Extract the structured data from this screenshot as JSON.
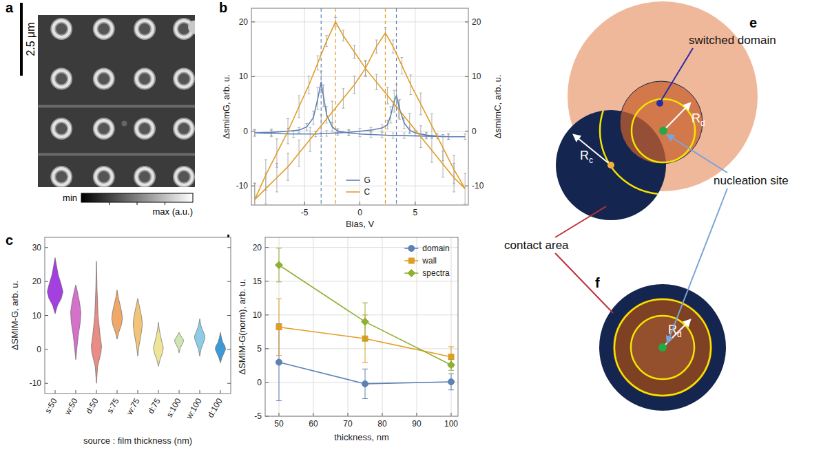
{
  "panels": [
    "a",
    "b",
    "c",
    "d",
    "e",
    "f"
  ],
  "image": {
    "scale_bar": "2.5 μm",
    "colorbar": {
      "min_label": "min",
      "max_label": "max (a.u.)"
    }
  },
  "chart_data": [
    {
      "type": "line",
      "x_label": "Bias, V",
      "y_label": "ΔsmimG, arb. u.",
      "y2_label": "ΔsmimC, arb. u.",
      "xlim": [
        -9.8,
        9.8
      ],
      "xticks": [
        -5,
        0,
        5
      ],
      "ylim": [
        -13.5,
        22.5
      ],
      "yticks": [
        -10,
        0,
        10,
        20
      ],
      "y2lim": [
        -13.5,
        22.5
      ],
      "y2ticks": [
        -10,
        0,
        10,
        20
      ],
      "grid": true,
      "legend": "bottom",
      "series": [
        {
          "name": "G",
          "color": "#5e81b5",
          "x": [
            -9.5,
            -8,
            -6,
            -4,
            -3,
            -2,
            -1,
            0,
            1,
            2,
            2.5,
            2.8,
            3.1,
            3.3,
            3.6,
            4,
            4.5,
            5,
            6,
            7,
            8,
            9.5,
            8,
            6,
            4,
            3,
            2,
            1,
            0,
            -1,
            -2,
            -2.5,
            -3,
            -3.3,
            -3.5,
            -3.8,
            -4.2,
            -4.8,
            -5.5,
            -6.5,
            -8,
            -9.5
          ],
          "values": [
            -0.3,
            -0.4,
            -0.5,
            -0.5,
            -0.4,
            -0.3,
            -0.2,
            0,
            0.2,
            0.6,
            1.2,
            3,
            5.5,
            6.5,
            4,
            1.5,
            0.2,
            -0.3,
            -0.7,
            -0.9,
            -1,
            -1,
            -1,
            -0.9,
            -0.8,
            -0.8,
            -0.7,
            -0.6,
            -0.5,
            -0.3,
            0,
            0.8,
            3,
            6.5,
            9,
            6,
            2.5,
            0.8,
            0.2,
            0,
            -0.2,
            -0.3
          ],
          "errors": [
            0.6,
            0.6,
            0.6,
            0.5,
            0.5,
            0.5,
            0.5,
            0.5,
            0.5,
            0.6,
            0.8,
            1.5,
            2,
            2,
            1.8,
            1,
            0.6,
            0.5,
            0.5,
            0.5,
            0.5,
            0.5,
            0.5,
            0.5,
            0.5,
            0.5,
            0.5,
            0.5,
            0.5,
            0.5,
            0.5,
            0.8,
            1.5,
            2,
            2,
            2,
            1.2,
            0.6,
            0.5,
            0.5,
            0.6,
            0.6
          ]
        },
        {
          "name": "C",
          "color": "#e19c24",
          "axis": "y2",
          "x": [
            -9.5,
            -8.5,
            -7.5,
            -6.5,
            -5.5,
            -4.5,
            -3.5,
            -2.5,
            -1.5,
            -0.5,
            0.5,
            1.5,
            2.3,
            3,
            3.8,
            4.6,
            5.5,
            6.5,
            7.5,
            8.5,
            9.5,
            8.5,
            7.5,
            6.5,
            5.5,
            4.5,
            3.5,
            2.5,
            1.5,
            0.5,
            -0.5,
            -1.5,
            -2.2,
            -3,
            -3.8,
            -4.6,
            -5.5,
            -6.5,
            -7.5,
            -8.5,
            -9.5
          ],
          "values": [
            -12.5,
            -10.5,
            -8.5,
            -6.5,
            -4,
            -1.5,
            1,
            3.5,
            6,
            8.5,
            11.5,
            15.5,
            18,
            15.5,
            12,
            8.5,
            5,
            1,
            -3,
            -7,
            -10.5,
            -8.5,
            -6,
            -3.5,
            -1,
            1.5,
            4,
            6.5,
            9,
            11.5,
            14.5,
            17.5,
            20,
            16.5,
            12.5,
            8.5,
            4.5,
            0,
            -4,
            -8,
            -12.5
          ],
          "errors": [
            3,
            2.8,
            2.6,
            2.5,
            2.4,
            2.2,
            2,
            2,
            1.8,
            1.6,
            1.5,
            1.2,
            1,
            1.2,
            1.5,
            1.8,
            2,
            2.2,
            2.4,
            2.6,
            2.8,
            2.6,
            2.4,
            2.2,
            2,
            1.8,
            1.6,
            1.5,
            1.4,
            1.3,
            1.2,
            1,
            0.8,
            1,
            1.3,
            1.6,
            2,
            2.3,
            2.6,
            2.8,
            3
          ]
        }
      ],
      "vlines": [
        {
          "x": -3.5,
          "color": "#5e81b5"
        },
        {
          "x": -2.2,
          "color": "#e19c24"
        },
        {
          "x": 2.3,
          "color": "#e19c24"
        },
        {
          "x": 3.3,
          "color": "#5e81b5"
        }
      ]
    },
    {
      "type": "violin",
      "x_label": "source : film thickness (nm)",
      "y_label": "ΔSMIM-G, arb. u.",
      "categories": [
        "s:50",
        "w:50",
        "d:50",
        "s:75",
        "w:75",
        "d:75",
        "s:100",
        "w:100",
        "d:100"
      ],
      "ylim": [
        -13,
        33
      ],
      "yticks": [
        -10,
        0,
        10,
        20,
        30
      ],
      "colors": [
        "#a43fe0",
        "#d471c9",
        "#e88c86",
        "#f0a86a",
        "#f2c477",
        "#efe49a",
        "#cfe6b2",
        "#8fcbe6",
        "#3e9ad6"
      ],
      "violins": [
        {
          "y": [
            10.5,
            13,
            15,
            17,
            19,
            22,
            25,
            27
          ],
          "width": [
            0,
            0.12,
            0.3,
            0.38,
            0.3,
            0.15,
            0.06,
            0
          ]
        },
        {
          "y": [
            -3,
            0,
            4,
            8,
            11,
            14,
            17,
            19
          ],
          "width": [
            0,
            0.05,
            0.12,
            0.22,
            0.25,
            0.18,
            0.08,
            0
          ]
        },
        {
          "y": [
            -10,
            -5,
            -1,
            1,
            4,
            10,
            18,
            26
          ],
          "width": [
            0,
            0.06,
            0.22,
            0.25,
            0.18,
            0.08,
            0.03,
            0
          ]
        },
        {
          "y": [
            3,
            5,
            7,
            9,
            11,
            13,
            15,
            17.5
          ],
          "width": [
            0,
            0.08,
            0.2,
            0.26,
            0.22,
            0.15,
            0.07,
            0
          ]
        },
        {
          "y": [
            -2,
            1,
            4,
            7,
            9,
            11,
            13,
            15
          ],
          "width": [
            0,
            0.06,
            0.15,
            0.22,
            0.2,
            0.14,
            0.07,
            0
          ]
        },
        {
          "y": [
            -5,
            -3,
            -1,
            0.5,
            2,
            4,
            6,
            8
          ],
          "width": [
            0,
            0.08,
            0.2,
            0.24,
            0.18,
            0.1,
            0.04,
            0
          ]
        },
        {
          "y": [
            -1,
            0.5,
            1.5,
            2.5,
            3,
            3.5,
            4.3,
            5
          ],
          "width": [
            0,
            0.06,
            0.15,
            0.22,
            0.2,
            0.14,
            0.06,
            0
          ]
        },
        {
          "y": [
            -2,
            0,
            1.5,
            3,
            4,
            5.5,
            7,
            9
          ],
          "width": [
            0,
            0.06,
            0.15,
            0.24,
            0.25,
            0.15,
            0.06,
            0
          ]
        },
        {
          "y": [
            -4,
            -2.5,
            -1,
            0,
            1,
            2,
            3.5,
            5
          ],
          "width": [
            0,
            0.07,
            0.18,
            0.25,
            0.22,
            0.12,
            0.05,
            0
          ]
        }
      ]
    },
    {
      "type": "line",
      "x_label": "thickness, nm",
      "y_label": "ΔSMIM-G(norm), arb. u.",
      "x": [
        50,
        75,
        100
      ],
      "xlim": [
        46,
        102
      ],
      "xticks": [
        50,
        60,
        70,
        80,
        90,
        100
      ],
      "ylim": [
        -5,
        21.5
      ],
      "yticks": [
        -5,
        0,
        5,
        10,
        15,
        20
      ],
      "grid": true,
      "legend": "top-right",
      "series": [
        {
          "name": "domain",
          "color": "#5e81b5",
          "marker": "circle",
          "values": [
            3,
            -0.2,
            0.1
          ],
          "errors": [
            5.7,
            2.2,
            1.2
          ]
        },
        {
          "name": "wall",
          "color": "#e19c24",
          "marker": "square",
          "values": [
            8.2,
            6.5,
            3.8
          ],
          "errors": [
            4.2,
            3.5,
            1.5
          ]
        },
        {
          "name": "spectra",
          "color": "#8fb032",
          "marker": "diamond",
          "values": [
            17.4,
            9,
            2.6
          ],
          "errors": [
            2.5,
            2.8,
            0.8
          ]
        }
      ]
    }
  ],
  "diagram": {
    "switched_domain": "switched domain",
    "contact_area": "contact area",
    "nucleation_site": "nucleation site",
    "domain_radius": {
      "main": "R",
      "sub": "d"
    },
    "contact_radius": {
      "main": "R",
      "sub": "c"
    }
  }
}
